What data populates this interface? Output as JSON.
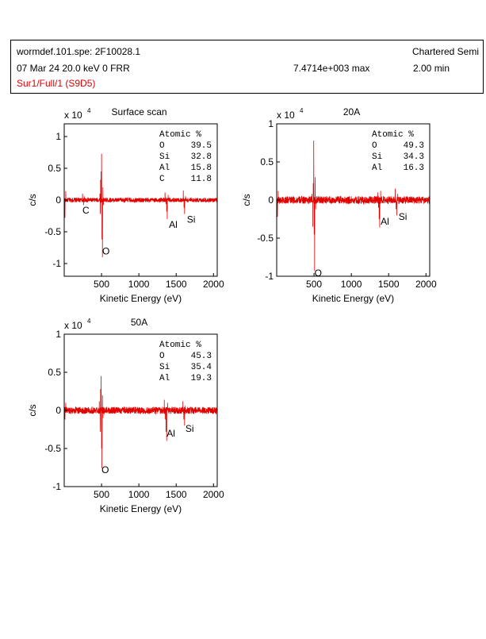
{
  "header": {
    "file": "wormdef.101.spe: 2F10028.1",
    "company": "Chartered Semi",
    "date_line": "07 Mar 24  20.0 keV  0  FRR",
    "max": "7.4714e+003 max",
    "time": "2.00 min",
    "region": "Sur1/Full/1 (S9D5)"
  },
  "colors": {
    "trace": "#e00000",
    "header_region": "#e00000",
    "axis": "#000000"
  },
  "chart_data": [
    {
      "type": "line",
      "title": "Surface scan",
      "xlabel": "Kinetic Energy (eV)",
      "ylabel": "c/s",
      "scale_label": "x 10",
      "scale_exp": "4",
      "xlim": [
        0,
        2050
      ],
      "ylim": [
        -1.2,
        1.2
      ],
      "xticks": [
        500,
        1000,
        1500,
        2000
      ],
      "yticks": [
        1,
        0.5,
        0,
        -0.5,
        -1
      ],
      "table_title": "Atomic %",
      "table": [
        [
          "O",
          "39.5"
        ],
        [
          "Si",
          "32.8"
        ],
        [
          "Al",
          "15.8"
        ],
        [
          "C",
          "11.8"
        ]
      ],
      "series": [
        {
          "noise": 0.035,
          "spikes": [
            [
              0,
              -0.75
            ],
            [
              10,
              -0.28
            ],
            [
              20,
              0.14
            ],
            [
              245,
              0.1
            ],
            [
              258,
              -0.08
            ],
            [
              268,
              0.06
            ],
            [
              478,
              0.1
            ],
            [
              482,
              -0.22
            ],
            [
              488,
              0.32
            ],
            [
              494,
              0.45
            ],
            [
              500,
              0.73
            ],
            [
              506,
              -0.62
            ],
            [
              512,
              -0.9
            ],
            [
              518,
              0.2
            ],
            [
              526,
              -0.08
            ],
            [
              1350,
              0.12
            ],
            [
              1362,
              -0.06
            ],
            [
              1372,
              -0.18
            ],
            [
              1380,
              -0.3
            ],
            [
              1392,
              0.08
            ],
            [
              1595,
              0.15
            ],
            [
              1605,
              -0.12
            ],
            [
              1612,
              -0.22
            ],
            [
              1624,
              0.06
            ]
          ]
        }
      ],
      "annotations": [
        {
          "text": "C",
          "x": 290,
          "y": -0.14
        },
        {
          "text": "O",
          "x": 560,
          "y": -0.78
        },
        {
          "text": "Al",
          "x": 1460,
          "y": -0.36
        },
        {
          "text": "Si",
          "x": 1700,
          "y": -0.28
        }
      ]
    },
    {
      "type": "line",
      "title": "20A",
      "xlabel": "Kinetic Energy (eV)",
      "ylabel": "c/s",
      "scale_label": "x 10",
      "scale_exp": "4",
      "xlim": [
        0,
        2050
      ],
      "ylim": [
        -1,
        1
      ],
      "xticks": [
        500,
        1000,
        1500,
        2000
      ],
      "yticks": [
        1,
        0.5,
        0,
        -0.5,
        -1
      ],
      "table_title": "Atomic %",
      "table": [
        [
          "O",
          "49.3"
        ],
        [
          "Si",
          "34.3"
        ],
        [
          "Al",
          "16.3"
        ]
      ],
      "series": [
        {
          "noise": 0.05,
          "spikes": [
            [
              0,
              -0.5
            ],
            [
              10,
              -0.22
            ],
            [
              20,
              0.12
            ],
            [
              472,
              0.08
            ],
            [
              484,
              -0.35
            ],
            [
              490,
              0.22
            ],
            [
              496,
              0.78
            ],
            [
              502,
              -0.45
            ],
            [
              508,
              -0.93
            ],
            [
              514,
              0.3
            ],
            [
              522,
              -0.12
            ],
            [
              1352,
              0.1
            ],
            [
              1364,
              -0.1
            ],
            [
              1372,
              -0.25
            ],
            [
              1380,
              -0.36
            ],
            [
              1392,
              0.12
            ],
            [
              1588,
              0.15
            ],
            [
              1600,
              -0.12
            ],
            [
              1610,
              -0.2
            ],
            [
              1622,
              0.08
            ]
          ]
        }
      ],
      "annotations": [
        {
          "text": "O",
          "x": 555,
          "y": -0.94
        },
        {
          "text": "Al",
          "x": 1450,
          "y": -0.26
        },
        {
          "text": "Si",
          "x": 1690,
          "y": -0.2
        }
      ]
    },
    {
      "type": "line",
      "title": "50A",
      "xlabel": "Kinetic Energy (eV)",
      "ylabel": "c/s",
      "scale_label": "x 10",
      "scale_exp": "4",
      "xlim": [
        0,
        2050
      ],
      "ylim": [
        -1,
        1
      ],
      "xticks": [
        500,
        1000,
        1500,
        2000
      ],
      "yticks": [
        1,
        0.5,
        0,
        -0.5,
        -1
      ],
      "table_title": "Atomic %",
      "table": [
        [
          "O",
          "45.3"
        ],
        [
          "Si",
          "35.4"
        ],
        [
          "Al",
          "19.3"
        ]
      ],
      "series": [
        {
          "noise": 0.045,
          "spikes": [
            [
              0,
              -0.32
            ],
            [
              10,
              -0.12
            ],
            [
              20,
              0.1
            ],
            [
              470,
              0.12
            ],
            [
              482,
              -0.28
            ],
            [
              488,
              0.28
            ],
            [
              494,
              0.45
            ],
            [
              500,
              -0.5
            ],
            [
              506,
              -0.76
            ],
            [
              512,
              0.2
            ],
            [
              520,
              -0.1
            ],
            [
              1340,
              0.14
            ],
            [
              1352,
              -0.12
            ],
            [
              1364,
              -0.28
            ],
            [
              1372,
              -0.4
            ],
            [
              1384,
              0.1
            ],
            [
              1590,
              0.12
            ],
            [
              1602,
              -0.12
            ],
            [
              1612,
              -0.2
            ],
            [
              1622,
              0.06
            ]
          ]
        }
      ],
      "annotations": [
        {
          "text": "O",
          "x": 550,
          "y": -0.76
        },
        {
          "text": "Al",
          "x": 1430,
          "y": -0.28
        },
        {
          "text": "Si",
          "x": 1680,
          "y": -0.22
        }
      ]
    }
  ]
}
